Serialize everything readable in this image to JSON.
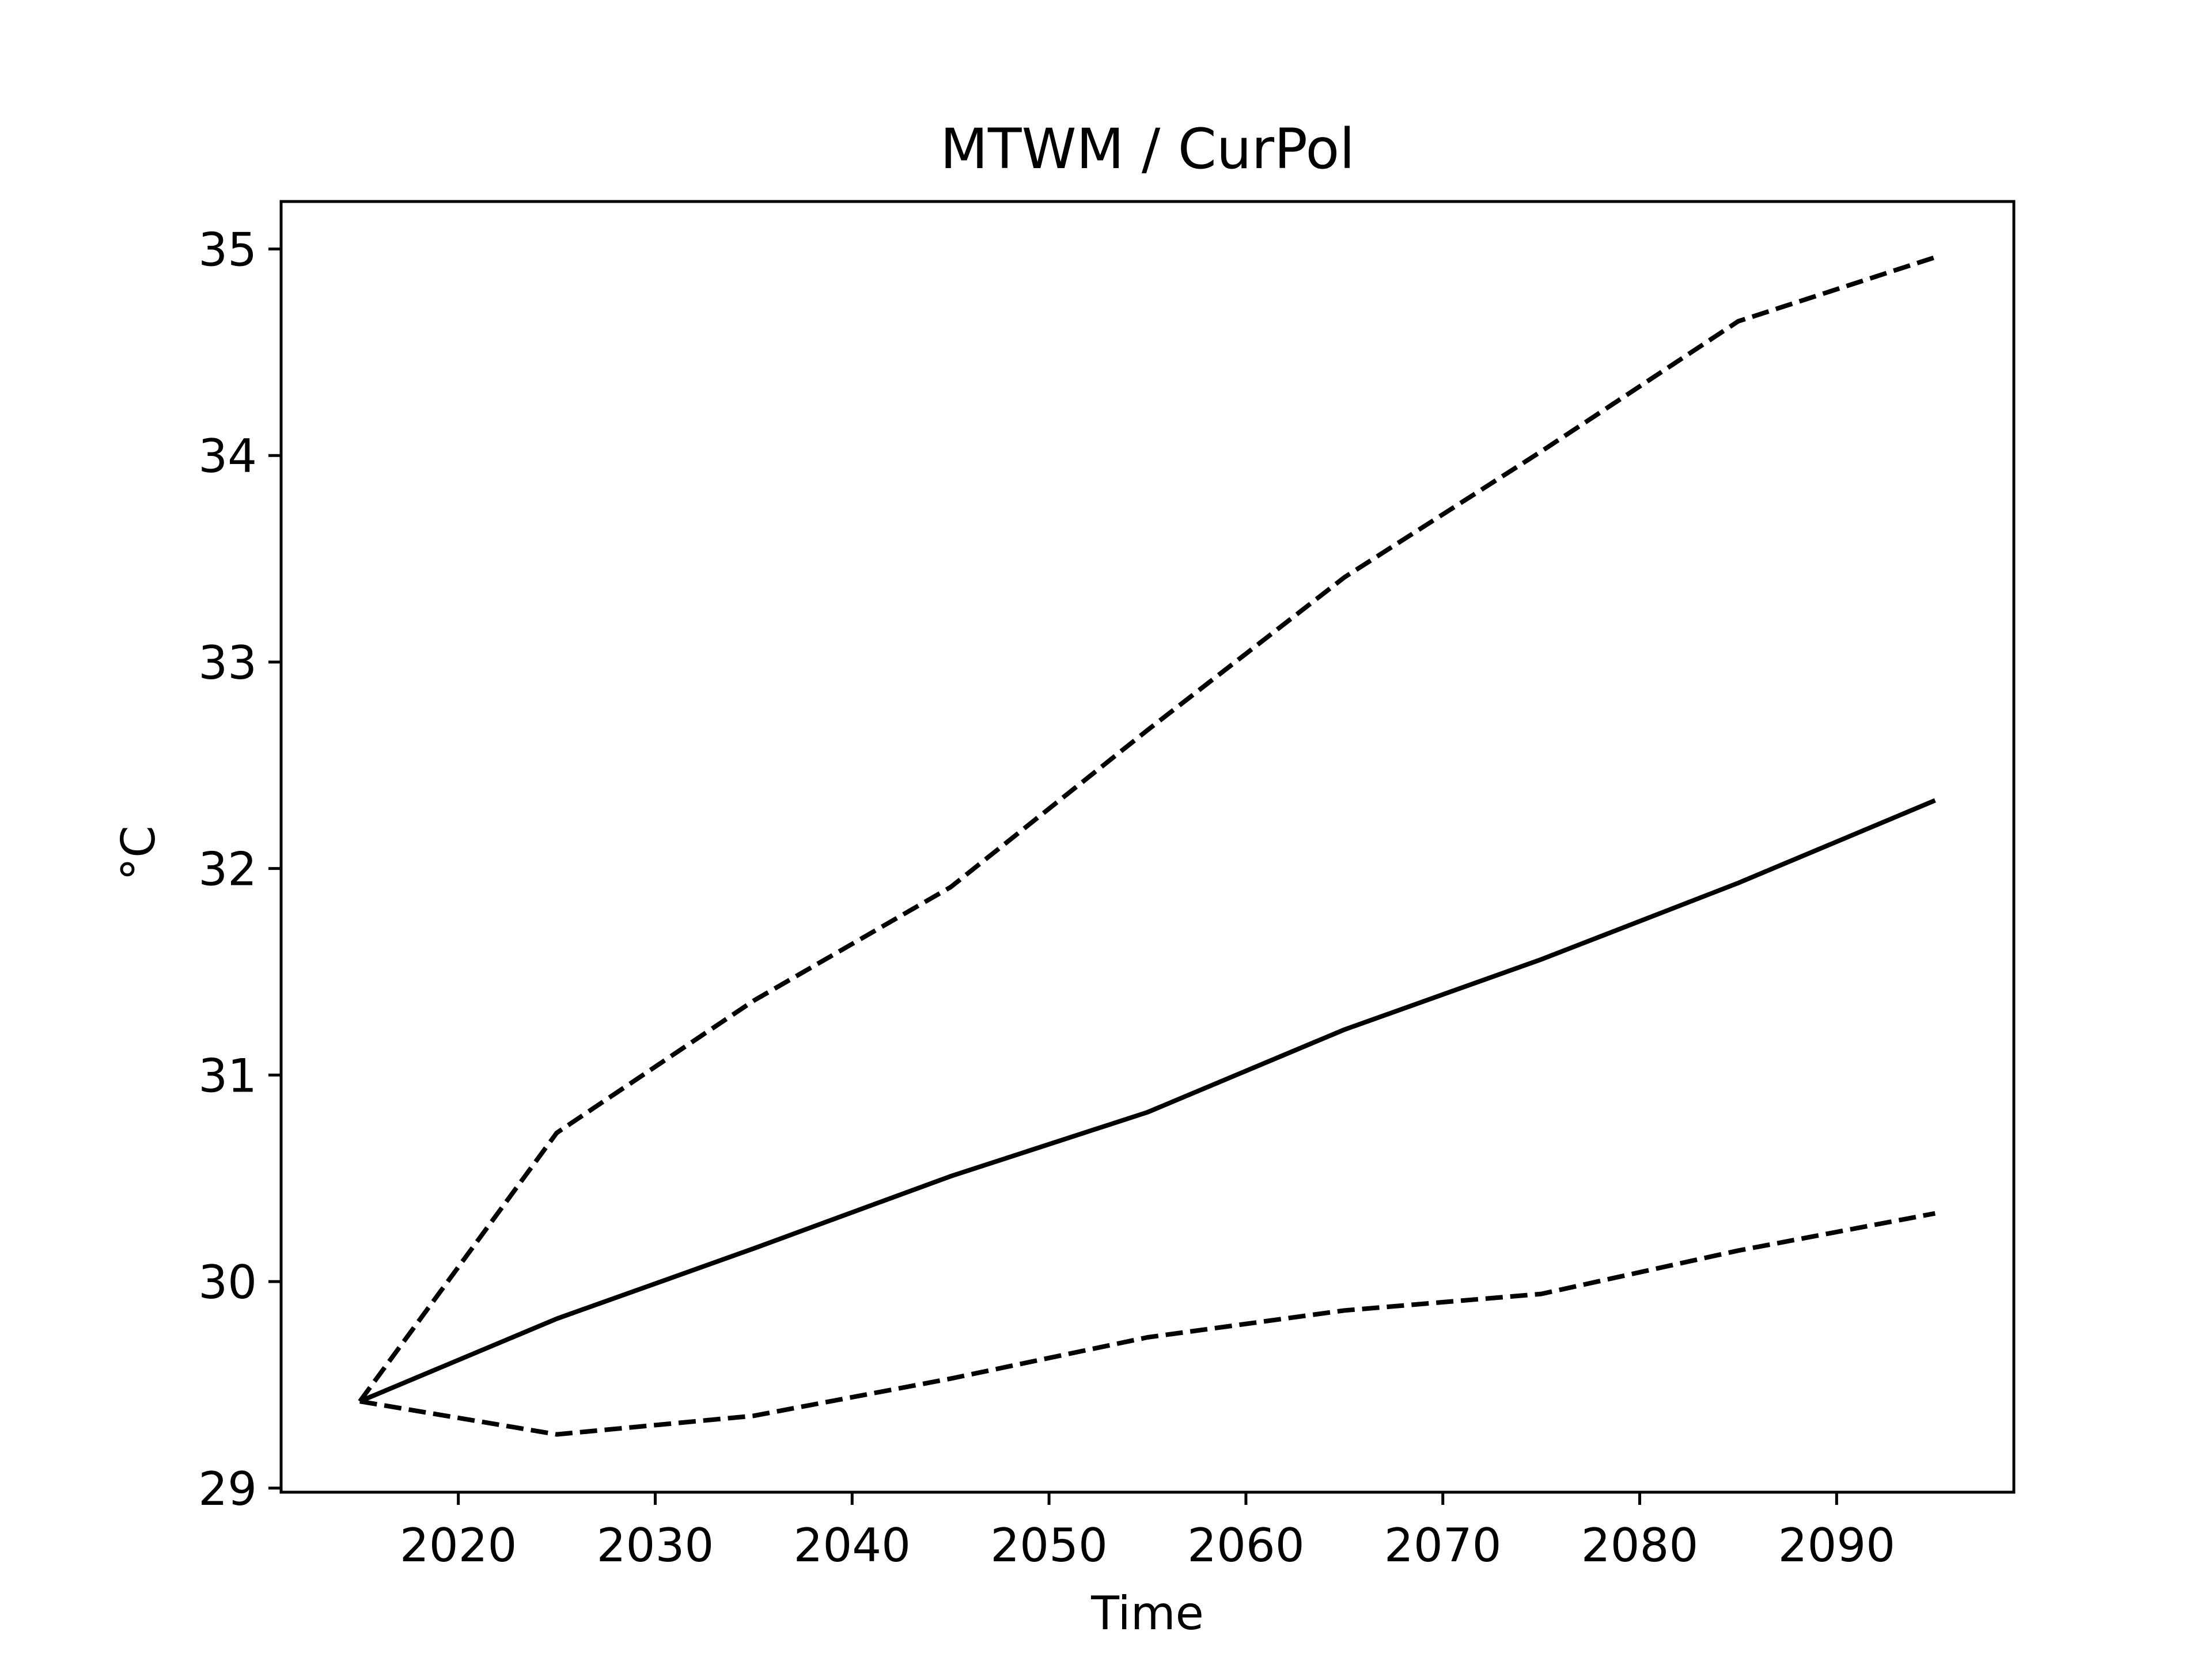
{
  "chart_data": {
    "type": "line",
    "title": "MTWM / CurPol",
    "xlabel": "Time",
    "ylabel": "°C",
    "x": [
      2015,
      2025,
      2035,
      2045,
      2055,
      2065,
      2075,
      2085,
      2095
    ],
    "xlim": [
      2011,
      2099
    ],
    "ylim": [
      28.98,
      35.23
    ],
    "xticks": [
      2020,
      2030,
      2040,
      2050,
      2060,
      2070,
      2080,
      2090
    ],
    "yticks": [
      29,
      30,
      31,
      32,
      33,
      34,
      35
    ],
    "grid": false,
    "series": [
      {
        "style": "dashed",
        "color": "#000000",
        "values": [
          29.42,
          30.72,
          31.36,
          31.91,
          32.67,
          33.41,
          34.02,
          34.65,
          34.96
        ]
      },
      {
        "style": "solid",
        "color": "#000000",
        "values": [
          29.42,
          29.82,
          30.16,
          30.51,
          30.82,
          31.22,
          31.56,
          31.93,
          32.33
        ]
      },
      {
        "style": "dashed",
        "color": "#000000",
        "values": [
          29.42,
          29.26,
          29.35,
          29.53,
          29.73,
          29.86,
          29.94,
          30.15,
          30.33
        ]
      }
    ]
  }
}
